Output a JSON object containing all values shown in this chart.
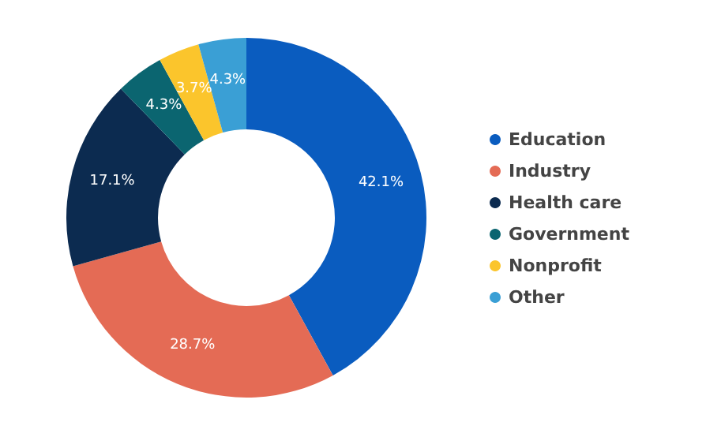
{
  "chart_data": {
    "type": "donut",
    "categories": [
      "Education",
      "Industry",
      "Health care",
      "Government",
      "Nonprofit",
      "Other"
    ],
    "values": [
      42.1,
      28.7,
      17.1,
      4.3,
      3.7,
      4.3
    ],
    "value_labels": [
      "42.1%",
      "28.7%",
      "17.1%",
      "4.3%",
      "3.7%",
      "4.3%"
    ],
    "colors": [
      "#0a5cbf",
      "#e46b55",
      "#0c2b50",
      "#0b6570",
      "#fbc52c",
      "#3a9fd5"
    ],
    "legend": "right"
  }
}
